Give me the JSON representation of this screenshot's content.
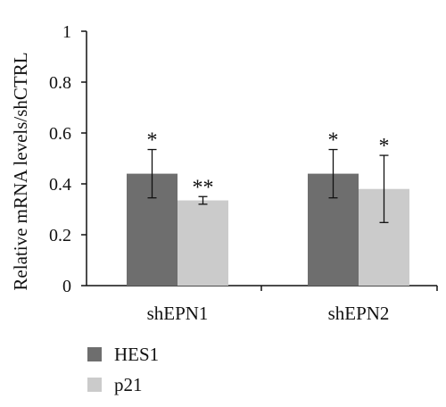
{
  "chart_data": {
    "type": "bar",
    "title": "",
    "xlabel": "",
    "ylabel": "Relative mRNA levels/shCTRL",
    "ylim": [
      0,
      1
    ],
    "yticks": [
      0,
      0.2,
      0.4,
      0.6,
      0.8,
      1
    ],
    "ytick_labels": [
      "0",
      "0.2",
      "0.4",
      "0.6",
      "0.8",
      "1"
    ],
    "categories": [
      "shEPN1",
      "shEPN2"
    ],
    "series": [
      {
        "name": "HES1",
        "color": "#6e6e6e",
        "values": [
          0.44,
          0.44
        ],
        "errors": [
          0.095,
          0.095
        ],
        "annotations": [
          "*",
          "*"
        ]
      },
      {
        "name": "p21",
        "color": "#cbcbcb",
        "values": [
          0.335,
          0.38
        ],
        "errors": [
          0.015,
          0.132
        ],
        "annotations": [
          "**",
          "*"
        ]
      }
    ],
    "legend_position": "bottom-left",
    "grid": false
  }
}
